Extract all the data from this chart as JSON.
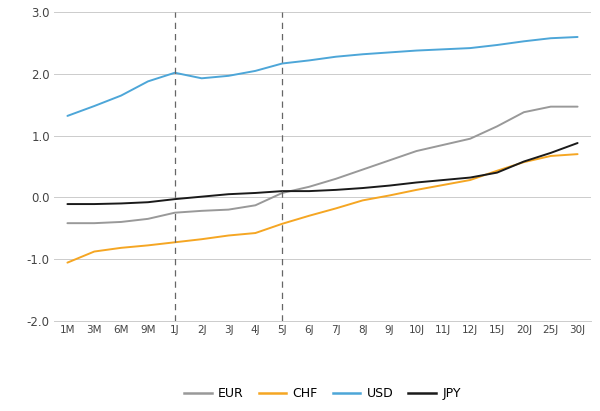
{
  "x_labels": [
    "1M",
    "3M",
    "6M",
    "9M",
    "1J",
    "2J",
    "3J",
    "4J",
    "5J",
    "6J",
    "7J",
    "8J",
    "9J",
    "10J",
    "11J",
    "12J",
    "15J",
    "20J",
    "25J",
    "30J"
  ],
  "EUR": [
    -0.42,
    -0.42,
    -0.4,
    -0.35,
    -0.25,
    -0.22,
    -0.2,
    -0.13,
    0.07,
    0.17,
    0.3,
    0.45,
    0.6,
    0.75,
    0.85,
    0.95,
    1.15,
    1.38,
    1.47,
    1.47
  ],
  "CHF": [
    -1.06,
    -0.88,
    -0.82,
    -0.78,
    -0.73,
    -0.68,
    -0.62,
    -0.58,
    -0.43,
    -0.3,
    -0.18,
    -0.05,
    0.03,
    0.12,
    0.2,
    0.28,
    0.43,
    0.57,
    0.67,
    0.7
  ],
  "USD": [
    1.32,
    1.48,
    1.65,
    1.88,
    2.02,
    1.93,
    1.97,
    2.05,
    2.17,
    2.22,
    2.28,
    2.32,
    2.35,
    2.38,
    2.4,
    2.42,
    2.47,
    2.53,
    2.58,
    2.6
  ],
  "JPY": [
    -0.11,
    -0.11,
    -0.1,
    -0.08,
    -0.03,
    0.01,
    0.05,
    0.07,
    0.1,
    0.1,
    0.12,
    0.15,
    0.19,
    0.24,
    0.28,
    0.32,
    0.4,
    0.58,
    0.72,
    0.88
  ],
  "EUR_color": "#999999",
  "CHF_color": "#f5a623",
  "USD_color": "#4da6d8",
  "JPY_color": "#1a1a1a",
  "vlines": [
    4,
    8
  ],
  "ylim": [
    -2.0,
    3.0
  ],
  "yticks": [
    -2.0,
    -1.0,
    0.0,
    1.0,
    2.0,
    3.0
  ],
  "ytick_labels": [
    "-2.0",
    "-1.0",
    "0.0",
    "1.0",
    "2.0",
    "3.0"
  ],
  "background_color": "#ffffff",
  "grid_color": "#cccccc",
  "vline_color": "#666666",
  "legend_labels": [
    "EUR",
    "CHF",
    "USD",
    "JPY"
  ]
}
